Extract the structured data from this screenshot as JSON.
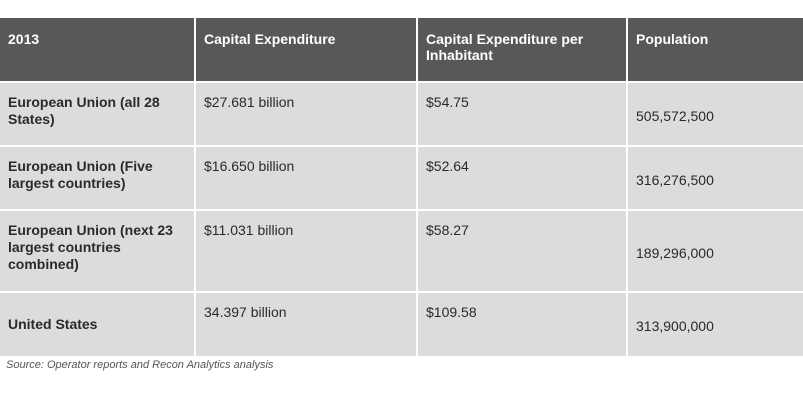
{
  "table": {
    "headers": [
      "2013",
      "Capital Expenditure",
      "Capital Expenditure per Inhabitant",
      "Population"
    ],
    "rows": [
      {
        "label": "European Union (all 28 States)",
        "capex": "$27.681 billion",
        "per_inhabitant": "$54.75",
        "population": "505,572,500"
      },
      {
        "label": "European Union (Five largest countries)",
        "capex": "$16.650 billion",
        "per_inhabitant": "$52.64",
        "population": "316,276,500"
      },
      {
        "label": "European Union (next 23 largest countries combined)",
        "capex": "$11.031 billion",
        "per_inhabitant": "$58.27",
        "population": "189,296,000"
      },
      {
        "label": "United States",
        "capex": "34.397 billion",
        "per_inhabitant": "$109.58",
        "population": "313,900,000"
      }
    ]
  },
  "source": "Source: Operator reports and Recon Analytics analysis",
  "colors": {
    "header_bg": "#585858",
    "cell_bg": "#dcdcdc"
  }
}
